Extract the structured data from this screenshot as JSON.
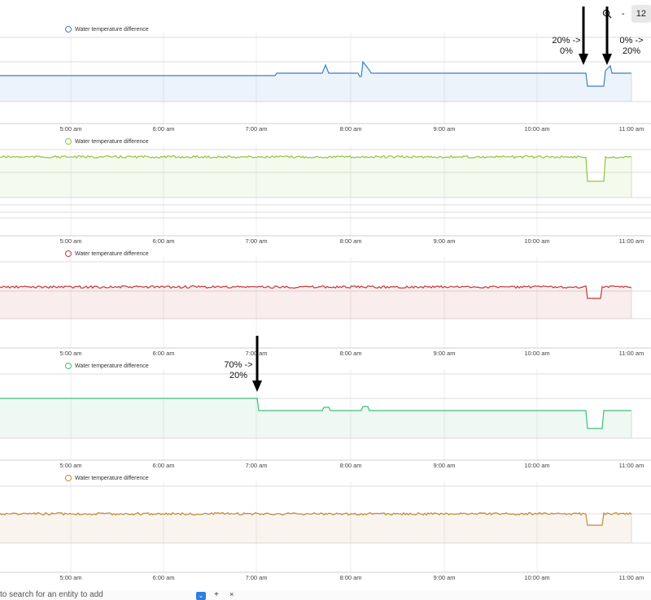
{
  "toolbar": {
    "zoom_value": "12",
    "minus_label": "-"
  },
  "x_ticks": [
    "5:00 am",
    "6:00 am",
    "7:00 am",
    "8:00 am",
    "9:00 am",
    "10:00 am",
    "11:00 am"
  ],
  "panels": [
    {
      "legend": "Water temperature difference",
      "color": "#3a7fc8"
    },
    {
      "legend": "Water temperature difference",
      "color": "#8dc63f"
    },
    {
      "legend": "Water temperature difference",
      "color": "#c0393b"
    },
    {
      "legend": "Water temperature difference",
      "color": "#3dbf7a"
    },
    {
      "legend": "Water temperature difference",
      "color": "#c08a3a"
    }
  ],
  "annotations": {
    "a1": [
      "20% ->",
      "0%"
    ],
    "a2": [
      "0% ->",
      "20%"
    ],
    "a3": [
      "70% ->",
      "20%"
    ]
  },
  "search": {
    "placeholder": "to search for an entity to add",
    "add": "+",
    "close": "×"
  }
}
